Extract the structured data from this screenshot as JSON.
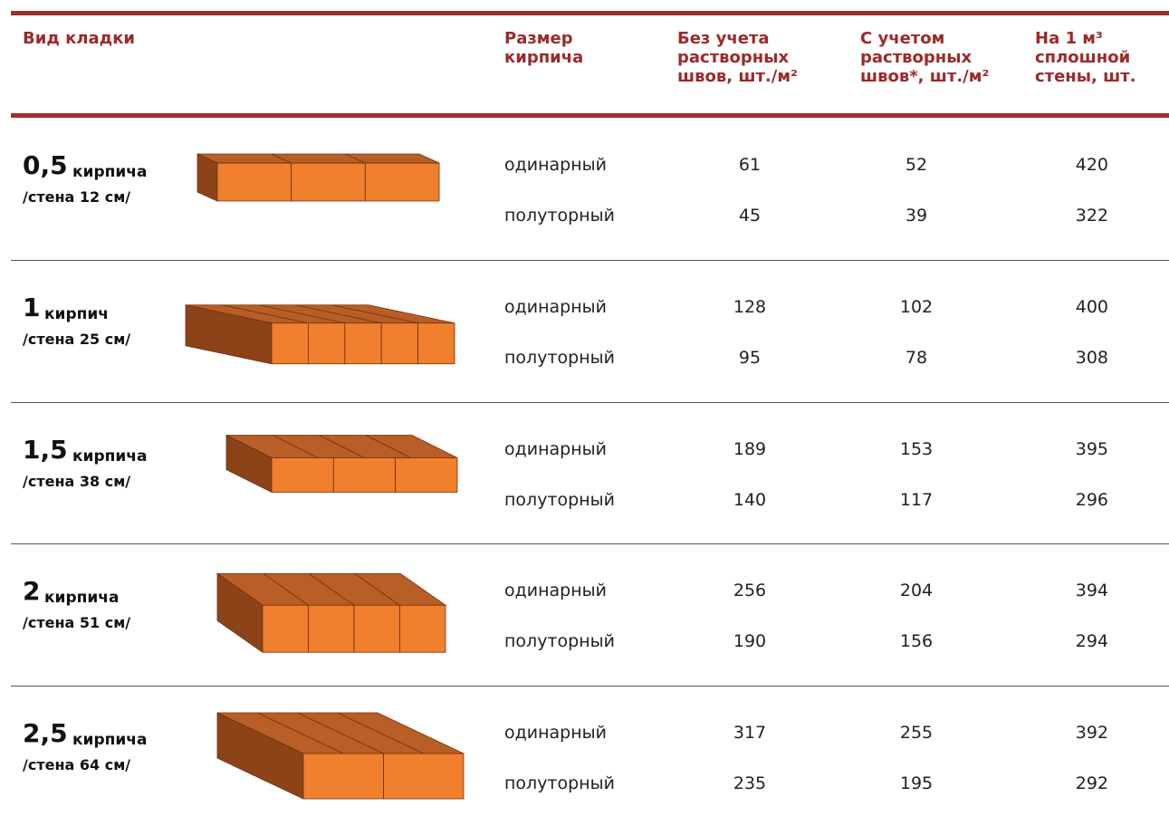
{
  "header": {
    "columns": [
      {
        "lines": [
          "Вид кладки"
        ]
      },
      {
        "lines": [
          "Размер",
          "кирпича"
        ]
      },
      {
        "lines": [
          "Без учета",
          "растворных",
          "швов, шт./м²"
        ]
      },
      {
        "lines": [
          "С учетом",
          "растворных",
          "швов*, шт./м²"
        ]
      },
      {
        "lines": [
          "На 1 м³",
          "сплошной",
          "стены, шт."
        ]
      }
    ]
  },
  "rows": [
    {
      "number": "0,5",
      "unit": "кирпича",
      "wall": "/стена 12 см/",
      "sizes": [
        {
          "size": "одинарный",
          "without_joints": 61,
          "with_joints": 52,
          "per_m3": 420
        },
        {
          "size": "полуторный",
          "without_joints": 45,
          "with_joints": 39,
          "per_m3": 322
        }
      ]
    },
    {
      "number": "1",
      "unit": "кирпич",
      "wall": "/стена 25 см/",
      "sizes": [
        {
          "size": "одинарный",
          "without_joints": 128,
          "with_joints": 102,
          "per_m3": 400
        },
        {
          "size": "полуторный",
          "without_joints": 95,
          "with_joints": 78,
          "per_m3": 308
        }
      ]
    },
    {
      "number": "1,5",
      "unit": "кирпича",
      "wall": "/стена 38 см/",
      "sizes": [
        {
          "size": "одинарный",
          "without_joints": 189,
          "with_joints": 153,
          "per_m3": 395
        },
        {
          "size": "полуторный",
          "without_joints": 140,
          "with_joints": 117,
          "per_m3": 296
        }
      ]
    },
    {
      "number": "2",
      "unit": "кирпича",
      "wall": "/стена 51 см/",
      "sizes": [
        {
          "size": "одинарный",
          "without_joints": 256,
          "with_joints": 204,
          "per_m3": 394
        },
        {
          "size": "полуторный",
          "without_joints": 190,
          "with_joints": 156,
          "per_m3": 294
        }
      ]
    },
    {
      "number": "2,5",
      "unit": "кирпича",
      "wall": "/стена 64 см/",
      "sizes": [
        {
          "size": "одинарный",
          "without_joints": 317,
          "with_joints": 255,
          "per_m3": 392
        },
        {
          "size": "полуторный",
          "without_joints": 235,
          "with_joints": 195,
          "per_m3": 292
        }
      ]
    }
  ]
}
